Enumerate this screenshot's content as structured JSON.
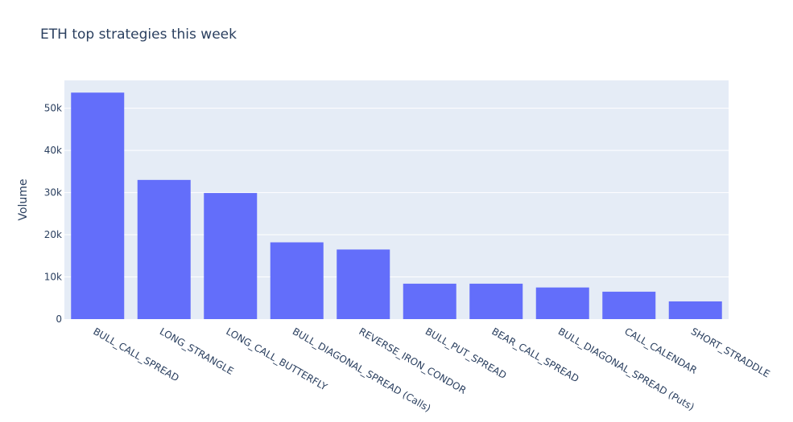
{
  "chart_data": {
    "type": "bar",
    "title": "ETH top strategies this week",
    "xlabel": "",
    "ylabel": "Volume",
    "categories": [
      "BULL_CALL_SPREAD",
      "LONG_STRANGLE",
      "LONG_CALL_BUTTERFLY",
      "BULL_DIAGONAL_SPREAD (Calls)",
      "REVERSE_IRON_CONDOR",
      "BULL_PUT_SPREAD",
      "BEAR_CALL_SPREAD",
      "BULL_DIAGONAL_SPREAD (Puts)",
      "CALL_CALENDAR",
      "SHORT_STRADDLE"
    ],
    "series": [
      {
        "values": [
          53700,
          33000,
          29900,
          18200,
          16500,
          8400,
          8400,
          7500,
          6500,
          4200
        ]
      }
    ],
    "ylim": [
      0,
      56600
    ],
    "yticks": [
      0,
      10000,
      20000,
      30000,
      40000,
      50000
    ],
    "ytick_labels": [
      "0",
      "10k",
      "20k",
      "30k",
      "40k",
      "50k"
    ],
    "grid": true,
    "legend": "none",
    "colors": {
      "bar": "#636efa",
      "plot_background": "#e5ecf6",
      "gridline": "#ffffff",
      "text": "#2a3f5f"
    }
  }
}
